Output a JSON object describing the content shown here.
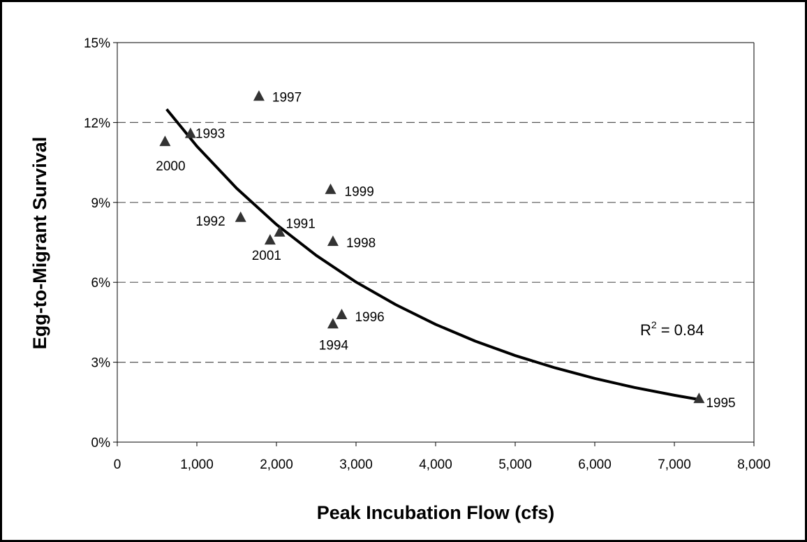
{
  "chart_data": {
    "type": "scatter",
    "x_label": "Peak Incubation Flow (cfs)",
    "y_label": "Egg-to-Migrant Survival",
    "xlim": [
      0,
      8000
    ],
    "ylim": [
      0,
      15
    ],
    "xticks": [
      0,
      {
        "value": 1000,
        "label": "1,000"
      },
      {
        "value": 2000,
        "label": "2,000"
      },
      {
        "value": 3000,
        "label": "3,000"
      },
      {
        "value": 4000,
        "label": "4,000"
      },
      {
        "value": 5000,
        "label": "5,000"
      },
      {
        "value": 6000,
        "label": "6,000"
      },
      {
        "value": 7000,
        "label": "7,000"
      },
      {
        "value": 8000,
        "label": "8,000"
      }
    ],
    "yticks": [
      {
        "value": 0,
        "label": "0%"
      },
      {
        "value": 3,
        "label": "3%"
      },
      {
        "value": 6,
        "label": "6%"
      },
      {
        "value": 9,
        "label": "9%"
      },
      {
        "value": 12,
        "label": "12%"
      },
      {
        "value": 15,
        "label": "15%"
      }
    ],
    "grid": true,
    "series": [
      {
        "color": "#333333",
        "x": [
          600,
          920,
          1780,
          2680,
          1550,
          2040,
          1920,
          2710,
          2820,
          2710,
          7310
        ],
        "values": [
          11.3,
          11.6,
          13.0,
          9.5,
          8.45,
          7.9,
          7.6,
          7.55,
          4.8,
          4.45,
          1.65
        ],
        "labels": [
          "2000",
          "1993",
          "1997",
          "1999",
          "1992",
          "1991",
          "2001",
          "1998",
          "1996",
          "1994",
          "1995"
        ]
      }
    ],
    "trendline": {
      "color": "#000000",
      "x": [
        620,
        1000,
        1500,
        2000,
        2500,
        3000,
        3500,
        4000,
        4500,
        5000,
        5500,
        6000,
        6500,
        7000,
        7310
      ],
      "values": [
        12.5,
        11.11,
        9.53,
        8.17,
        7.01,
        6.01,
        5.16,
        4.42,
        3.79,
        3.25,
        2.79,
        2.39,
        2.05,
        1.76,
        1.6
      ]
    },
    "annotation": {
      "base": "R",
      "superscript": "2",
      "rest": "= 0.84"
    }
  }
}
